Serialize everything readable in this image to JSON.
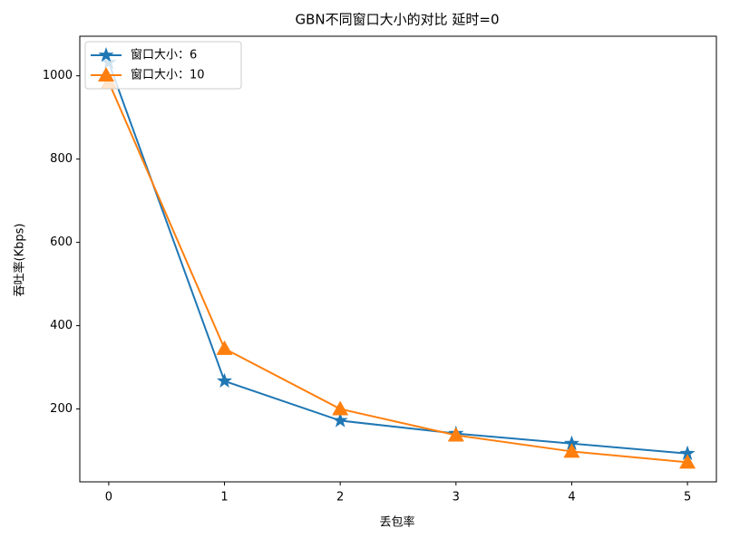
{
  "chart_data": {
    "type": "line",
    "title": "GBN不同窗口大小的对比  延时=0",
    "x_label": "丢包率",
    "y_label": "吞吐率(Kbps)",
    "x": [
      0,
      1,
      2,
      3,
      4,
      5
    ],
    "series": [
      {
        "name": "窗口大小：6",
        "color": "#1f77b4",
        "marker": "star",
        "values": [
          1032,
          267,
          172,
          141,
          117,
          93
        ]
      },
      {
        "name": "窗口大小：10",
        "color": "#ff7f0e",
        "marker": "triangle",
        "values": [
          985,
          345,
          200,
          137,
          98,
          72
        ]
      }
    ],
    "xlim": [
      -0.25,
      5.25
    ],
    "xticks": [
      0,
      1,
      2,
      3,
      4,
      5
    ],
    "ylim": [
      25,
      1095
    ],
    "yticks": [
      200,
      400,
      600,
      800,
      1000
    ],
    "grid": false,
    "legend": "upper-left"
  }
}
